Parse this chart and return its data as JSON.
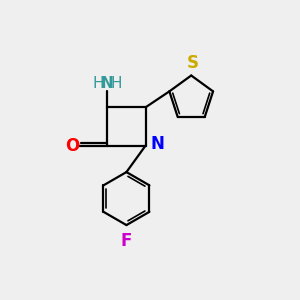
{
  "bg_color": "#efefef",
  "bond_color": "#000000",
  "n_color": "#0000ff",
  "o_color": "#ff0000",
  "s_color": "#ccaa00",
  "f_color": "#cc00cc",
  "nh_color": "#339999",
  "figsize": [
    3.0,
    3.0
  ],
  "dpi": 100,
  "xlim": [
    0,
    10
  ],
  "ylim": [
    0,
    10
  ]
}
